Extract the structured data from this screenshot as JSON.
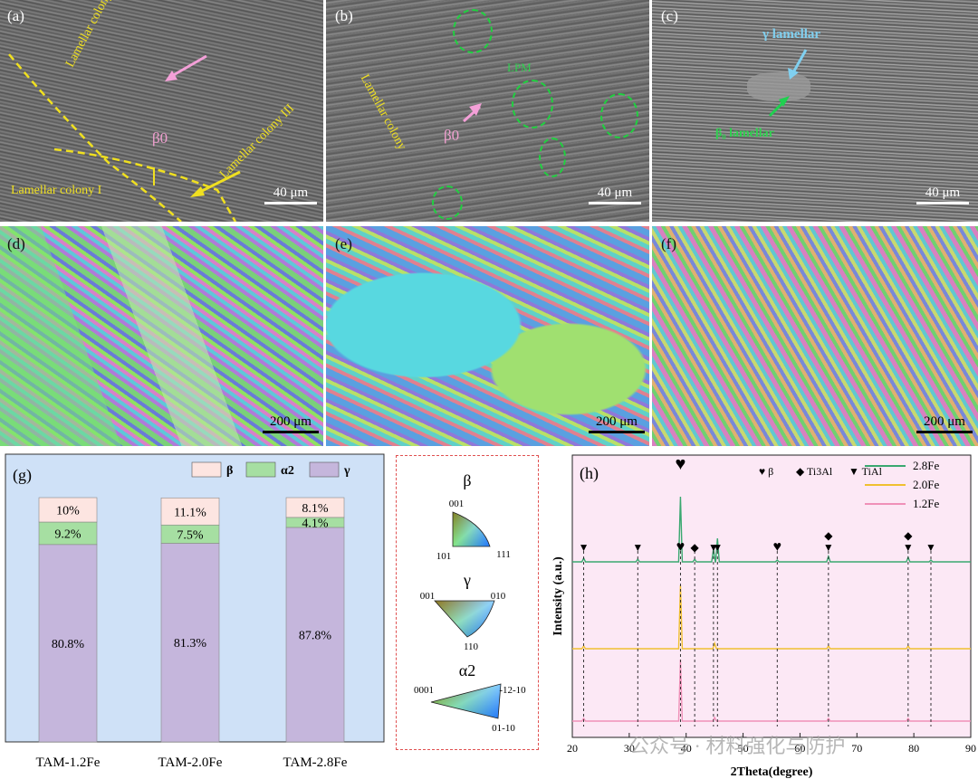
{
  "panel_a": {
    "label": "(a)",
    "colony_ii": "Lamellar colony II",
    "colony_iii": "Lamellar colony III",
    "colony_i": "Lamellar colony I",
    "beta0": "β0",
    "scale": "40 μm"
  },
  "panel_b": {
    "label": "(b)",
    "lpm": "LPM",
    "colony": "Lamellar colony",
    "beta0": "β0",
    "scale": "40 μm"
  },
  "panel_c": {
    "label": "(c)",
    "gamma_lamellar": "γ lamellar",
    "b_lamellar": "β₀ lamellar",
    "scale": "40 μm"
  },
  "panel_d": {
    "label": "(d)",
    "scale": "200 μm"
  },
  "panel_e": {
    "label": "(e)",
    "scale": "200 μm"
  },
  "panel_f": {
    "label": "(f)",
    "scale": "200 μm"
  },
  "ipf_legend": {
    "beta_title": "β",
    "beta_corners": [
      "001",
      "101",
      "111"
    ],
    "gamma_title": "γ",
    "gamma_corners": [
      "001",
      "010",
      "110"
    ],
    "alpha2_title": "α2",
    "alpha2_corners": [
      "0001",
      "-12-10",
      "01-10"
    ]
  },
  "colors": {
    "beta": "#fde5e1",
    "alpha2": "#a6dfa2",
    "gamma": "#c5b6dc",
    "panel_g_bg": "#cfe1f7",
    "panel_h_bg": "#fce8f5",
    "xrd_28": "#3aa870",
    "xrd_20": "#f0c030",
    "xrd_12": "#f090b8"
  },
  "chart_data": [
    {
      "type": "bar",
      "stacked": true,
      "panel_label": "(g)",
      "categories": [
        "TAM-1.2Fe",
        "TAM-2.0Fe",
        "TAM-2.8Fe"
      ],
      "series": [
        {
          "name": "γ",
          "values": [
            80.8,
            81.3,
            87.8
          ],
          "labels": [
            "80.8%",
            "81.3%",
            "87.8%"
          ]
        },
        {
          "name": "α2",
          "values": [
            9.2,
            7.5,
            4.1
          ],
          "labels": [
            "9.2%",
            "7.5%",
            "4.1%"
          ]
        },
        {
          "name": "β",
          "values": [
            10,
            11.1,
            8.1
          ],
          "labels": [
            "10%",
            "11.1%",
            "8.1%"
          ]
        }
      ],
      "legend": [
        "β",
        "α2",
        "γ"
      ],
      "legend_position": "top-right",
      "ylim": [
        0,
        100
      ]
    },
    {
      "type": "line",
      "panel_label": "(h)",
      "xlabel": "2Theta(degree)",
      "ylabel": "Intensity (a.u.)",
      "xlim": [
        20,
        90
      ],
      "xticks": [
        20,
        30,
        40,
        50,
        60,
        70,
        80,
        90
      ],
      "series": [
        {
          "name": "2.8Fe",
          "peaks": [
            [
              22,
              4
            ],
            [
              31.5,
              3
            ],
            [
              39,
              72
            ],
            [
              41.5,
              3
            ],
            [
              44.8,
              14
            ],
            [
              45.5,
              26
            ],
            [
              56,
              2
            ],
            [
              65,
              6
            ],
            [
              79,
              5
            ],
            [
              83,
              2
            ]
          ]
        },
        {
          "name": "2.0Fe",
          "peaks": [
            [
              22,
              3
            ],
            [
              39,
              70
            ],
            [
              45,
              6
            ],
            [
              65,
              3
            ],
            [
              79,
              3
            ]
          ]
        },
        {
          "name": "1.2Fe",
          "peaks": [
            [
              22,
              3
            ],
            [
              39,
              68
            ],
            [
              45,
              4
            ],
            [
              65,
              3
            ],
            [
              79,
              3
            ]
          ]
        }
      ],
      "peak_legend": [
        "β",
        "Ti3Al",
        "TiAl"
      ],
      "markers": [
        {
          "x": 22,
          "symbols": [
            "TiAl"
          ]
        },
        {
          "x": 31.5,
          "symbols": [
            "TiAl"
          ]
        },
        {
          "x": 39,
          "symbols": [
            "β"
          ]
        },
        {
          "x": 41.5,
          "symbols": [
            "Ti3Al"
          ]
        },
        {
          "x": 44.8,
          "symbols": [
            "TiAl"
          ]
        },
        {
          "x": 45.5,
          "symbols": [
            "TiAl"
          ]
        },
        {
          "x": 56,
          "symbols": [
            "β"
          ]
        },
        {
          "x": 65,
          "symbols": [
            "Ti3Al",
            "TiAl"
          ]
        },
        {
          "x": 79,
          "symbols": [
            "Ti3Al",
            "TiAl"
          ]
        },
        {
          "x": 83,
          "symbols": [
            "TiAl"
          ]
        }
      ],
      "legend_position": "top-right",
      "watermark": "公众号 · 材料强化与防护"
    }
  ]
}
